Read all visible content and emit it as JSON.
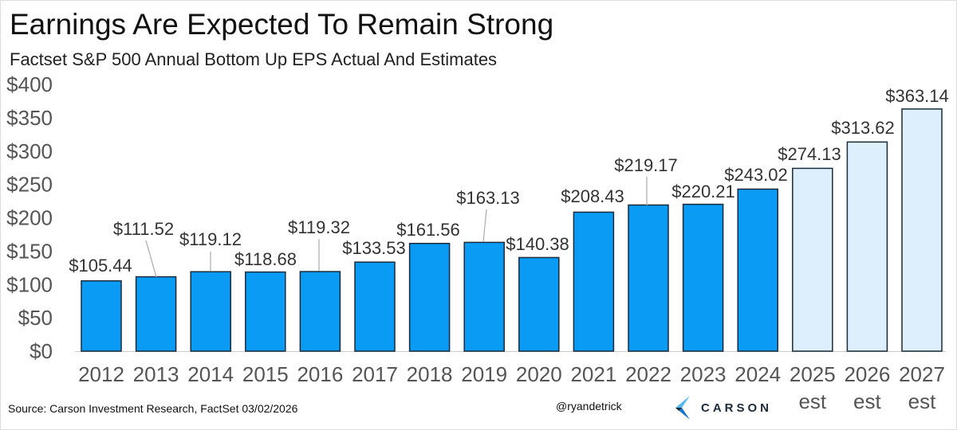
{
  "chart_data": {
    "type": "bar",
    "title": "Earnings Are Expected To Remain Strong",
    "subtitle": "Factset S&P 500 Annual Bottom Up EPS Actual And Estimates",
    "categories": [
      "2012",
      "2013",
      "2014",
      "2015",
      "2016",
      "2017",
      "2018",
      "2019",
      "2020",
      "2021",
      "2022",
      "2023",
      "2024",
      "2025\nest",
      "2026\nest",
      "2027\nest"
    ],
    "category_lines": [
      [
        "2012"
      ],
      [
        "2013"
      ],
      [
        "2014"
      ],
      [
        "2015"
      ],
      [
        "2016"
      ],
      [
        "2017"
      ],
      [
        "2018"
      ],
      [
        "2019"
      ],
      [
        "2020"
      ],
      [
        "2021"
      ],
      [
        "2022"
      ],
      [
        "2023"
      ],
      [
        "2024"
      ],
      [
        "2025",
        "est"
      ],
      [
        "2026",
        "est"
      ],
      [
        "2027",
        "est"
      ]
    ],
    "values": [
      105.44,
      111.52,
      119.12,
      118.68,
      119.32,
      133.53,
      161.56,
      163.13,
      140.38,
      208.43,
      219.17,
      220.21,
      243.02,
      274.13,
      313.62,
      363.14
    ],
    "data_labels": [
      "$105.44",
      "$111.52",
      "$119.12",
      "$118.68",
      "$119.32",
      "$133.53",
      "$161.56",
      "$163.13",
      "$140.38",
      "$208.43",
      "$219.17",
      "$220.21",
      "$243.02",
      "$274.13",
      "$313.62",
      "$363.14"
    ],
    "estimate": [
      false,
      false,
      false,
      false,
      false,
      false,
      false,
      false,
      false,
      false,
      false,
      false,
      false,
      true,
      true,
      true
    ],
    "ylim": [
      0,
      400
    ],
    "yticks": [
      0,
      50,
      100,
      150,
      200,
      250,
      300,
      350,
      400
    ],
    "ytick_labels": [
      "$0",
      "$50",
      "$100",
      "$150",
      "$200",
      "$250",
      "$300",
      "$350",
      "$400"
    ],
    "xlabel": "",
    "ylabel": "",
    "grid": false,
    "colors": {
      "actual": "#0a9cf5",
      "estimate": "#ddeffc",
      "outline": "#1a2a3a"
    }
  },
  "footer": {
    "source": "Source: Carson Investment Research, FactSet 03/02/2026",
    "handle": "@ryandetrick",
    "logo_text": "CARSON"
  }
}
